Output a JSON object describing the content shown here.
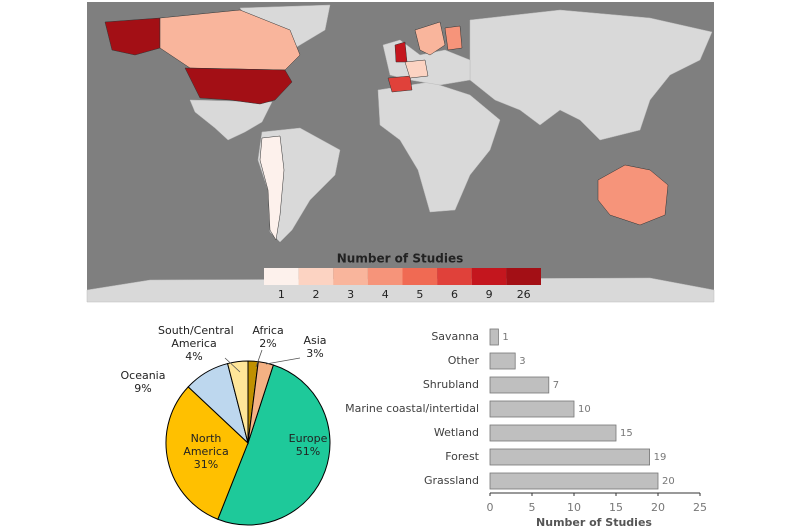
{
  "chart_data": [
    {
      "type": "choropleth",
      "legend": {
        "title": "Number of Studies",
        "categories": [
          1,
          2,
          3,
          4,
          5,
          6,
          9,
          26
        ],
        "colors": [
          "#fdf1ec",
          "#fcd3c2",
          "#f9b59c",
          "#f6947a",
          "#f06a53",
          "#e0413a",
          "#c4161e",
          "#a30f15"
        ]
      },
      "ocean_color": "#7f7f7f",
      "land_color": "#d9d9d9"
    },
    {
      "type": "pie",
      "categories": [
        "Europe",
        "North America",
        "Oceania",
        "South/Central America",
        "Africa",
        "Asia"
      ],
      "values": [
        51,
        31,
        9,
        4,
        2,
        3
      ],
      "value_labels": [
        "51%",
        "31%",
        "9%",
        "4%",
        "2%",
        "3%"
      ],
      "colors": [
        "#1ec99a",
        "#ffc000",
        "#bdd7ee",
        "#ffe699",
        "#bf9000",
        "#f4b183"
      ]
    },
    {
      "type": "bar",
      "orientation": "horizontal",
      "categories": [
        "Savanna",
        "Other",
        "Shrubland",
        "Marine coastal/intertidal",
        "Wetland",
        "Forest",
        "Grassland"
      ],
      "values": [
        1,
        3,
        7,
        10,
        15,
        19,
        20
      ],
      "color": "#bfbfbf",
      "xlim": [
        0,
        25
      ],
      "xticks": [
        0,
        5,
        10,
        15,
        20,
        25
      ],
      "xlabel": "Number of Studies"
    }
  ]
}
